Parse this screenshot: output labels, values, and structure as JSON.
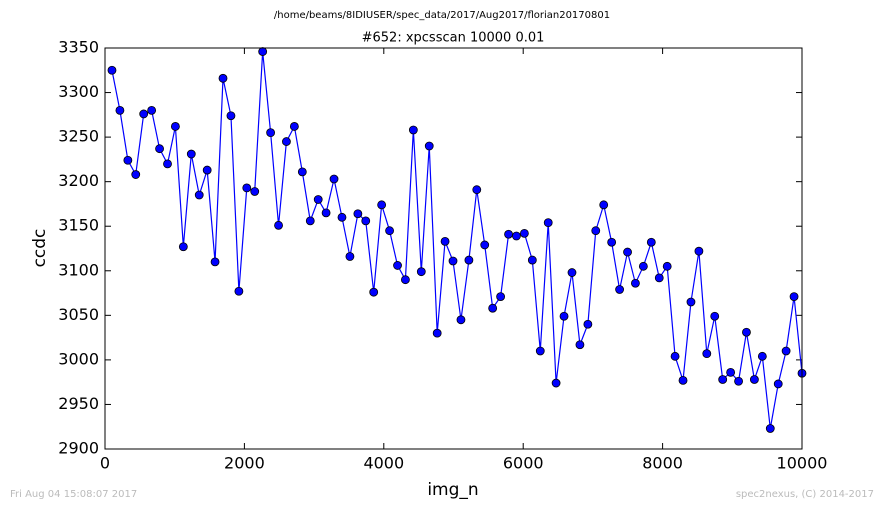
{
  "chart_data": {
    "type": "line",
    "suptitle": "/home/beams/8IDIUSER/spec_data/2017/Aug2017/florian20170801",
    "title": "#652: xpcsscan 10000 0.01",
    "x_label": "img_n",
    "y_label": "ccdc",
    "footer_left": "Fri Aug 04 15:08:07 2017",
    "footer_right": "spec2nexus, (C) 2014-2017",
    "x": [
      100,
      214,
      328,
      441,
      555,
      669,
      783,
      897,
      1010,
      1124,
      1238,
      1352,
      1466,
      1579,
      1693,
      1807,
      1921,
      2034,
      2148,
      2262,
      2376,
      2490,
      2603,
      2717,
      2831,
      2945,
      3059,
      3172,
      3286,
      3400,
      3514,
      3628,
      3741,
      3855,
      3969,
      4083,
      4197,
      4310,
      4424,
      4538,
      4652,
      4766,
      4879,
      4993,
      5107,
      5221,
      5334,
      5448,
      5562,
      5676,
      5790,
      5903,
      6017,
      6131,
      6245,
      6359,
      6472,
      6586,
      6700,
      6814,
      6928,
      7041,
      7155,
      7269,
      7383,
      7497,
      7610,
      7724,
      7838,
      7952,
      8066,
      8179,
      8293,
      8407,
      8521,
      8634,
      8748,
      8862,
      8976,
      9090,
      9203,
      9317,
      9431,
      9545,
      9659,
      9772,
      9886,
      10000
    ],
    "series": [
      {
        "color": "#0000ff",
        "marker_edge": "#000000",
        "values": [
          3325,
          3280,
          3224,
          3208,
          3276,
          3280,
          3237,
          3220,
          3262,
          3127,
          3231,
          3185,
          3213,
          3110,
          3316,
          3274,
          3077,
          3193,
          3189,
          3346,
          3255,
          3151,
          3245,
          3262,
          3211,
          3156,
          3180,
          3165,
          3203,
          3160,
          3116,
          3164,
          3156,
          3076,
          3174,
          3145,
          3106,
          3090,
          3258,
          3099,
          3240,
          3030,
          3133,
          3111,
          3045,
          3112,
          3191,
          3129,
          3058,
          3071,
          3141,
          3139,
          3142,
          3112,
          3010,
          3154,
          2974,
          3049,
          3098,
          3017,
          3040,
          3145,
          3174,
          3132,
          3079,
          3121,
          3086,
          3105,
          3132,
          3092,
          3105,
          3004,
          2977,
          3065,
          3122,
          3007,
          3049,
          2978,
          2986,
          2976,
          3031,
          2978,
          3004,
          2923,
          2973,
          3010,
          3071,
          2985
        ]
      }
    ],
    "xlim": [
      0,
      10000
    ],
    "xticks": [
      0,
      2000,
      4000,
      6000,
      8000,
      10000
    ],
    "ylim": [
      2900,
      3350
    ],
    "yticks": [
      2900,
      2950,
      3000,
      3050,
      3100,
      3150,
      3200,
      3250,
      3300,
      3350
    ]
  }
}
